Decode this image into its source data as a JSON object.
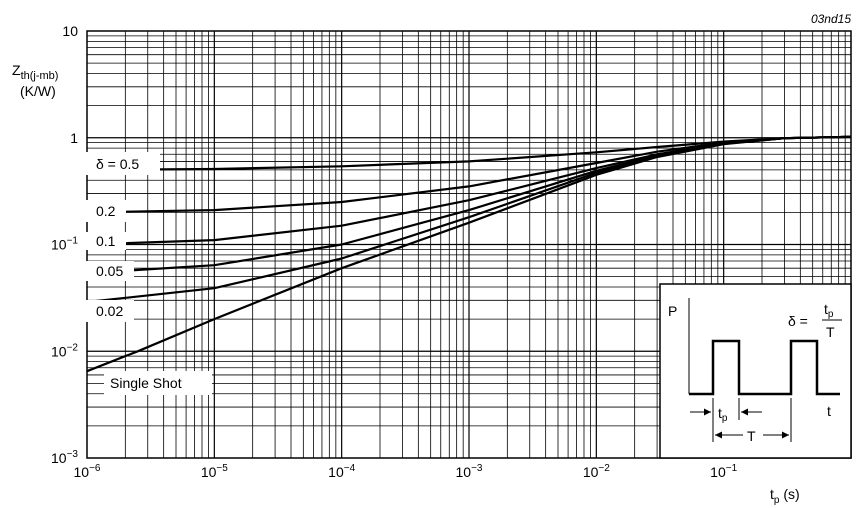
{
  "chart_data": {
    "type": "line",
    "corner_code": "03nd15",
    "ylabel_main": "Z",
    "ylabel_sub": "th(j-mb)",
    "ylabel_unit": "(K/W)",
    "xlabel_main": "t",
    "xlabel_sub": "p",
    "xlabel_unit": " (s)",
    "x_scale": "log",
    "y_scale": "log",
    "xlim": [
      1e-06,
      1
    ],
    "ylim": [
      0.001,
      10
    ],
    "grid": true,
    "x_ticks": [
      {
        "base": "10",
        "exp": "−6",
        "value": 1e-06
      },
      {
        "base": "10",
        "exp": "−5",
        "value": 1e-05
      },
      {
        "base": "10",
        "exp": "−4",
        "value": 0.0001
      },
      {
        "base": "10",
        "exp": "−3",
        "value": 0.001
      },
      {
        "base": "10",
        "exp": "−2",
        "value": 0.01
      },
      {
        "base": "10",
        "exp": "−1",
        "value": 0.1
      }
    ],
    "y_ticks": [
      {
        "base": "10",
        "exp": "",
        "value": 10
      },
      {
        "base": "1",
        "exp": "",
        "value": 1
      },
      {
        "base": "10",
        "exp": "−1",
        "value": 0.1
      },
      {
        "base": "10",
        "exp": "−2",
        "value": 0.01
      },
      {
        "base": "10",
        "exp": "−3",
        "value": 0.001
      }
    ],
    "x": [
      1e-06,
      2.5e-06,
      1e-05,
      0.0001,
      0.001,
      0.01,
      0.03,
      0.1,
      0.3,
      1
    ],
    "series": [
      {
        "name": "δ = 0.5",
        "values": [
          null,
          0.5,
          0.51,
          0.54,
          0.6,
          0.73,
          0.82,
          0.92,
          0.99,
          1.02
        ]
      },
      {
        "name": "0.2",
        "values": [
          null,
          0.2,
          0.21,
          0.25,
          0.35,
          0.58,
          0.74,
          0.9,
          0.99,
          1.02
        ]
      },
      {
        "name": "0.1",
        "values": [
          null,
          0.1,
          0.11,
          0.15,
          0.26,
          0.52,
          0.7,
          0.89,
          0.99,
          1.02
        ]
      },
      {
        "name": "0.05",
        "values": [
          null,
          0.054,
          0.064,
          0.1,
          0.21,
          0.49,
          0.68,
          0.88,
          0.99,
          1.02
        ]
      },
      {
        "name": "0.02",
        "values": [
          null,
          0.029,
          0.039,
          0.074,
          0.18,
          0.47,
          0.67,
          0.88,
          0.99,
          1.02
        ]
      },
      {
        "name": "Single Shot",
        "values": [
          0.0065,
          0.01,
          0.02,
          0.06,
          0.16,
          0.45,
          0.66,
          0.87,
          0.99,
          1.02
        ]
      }
    ],
    "inset": {
      "p_label": "P",
      "t_label": "t",
      "tp_label": "t",
      "tp_sub": "p",
      "T_label": "T",
      "formula_lhs": "δ =",
      "formula_num": "t",
      "formula_num_sub": "p",
      "formula_den": "T"
    }
  }
}
